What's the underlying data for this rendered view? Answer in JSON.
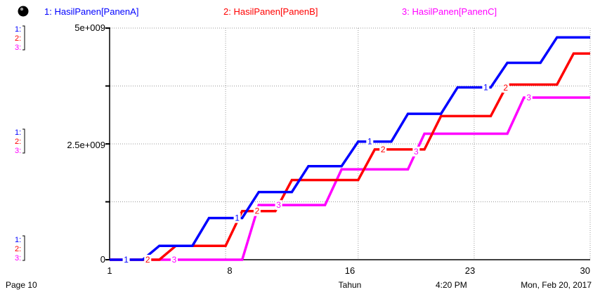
{
  "chart_data": {
    "type": "line",
    "title": "",
    "xlabel": "Tahun",
    "ylabel": "",
    "xlim": [
      1,
      30
    ],
    "ylim": [
      0,
      5000000000
    ],
    "x_ticks": [
      "1",
      "8",
      "16",
      "23",
      "30"
    ],
    "y_ticks": [
      "0",
      "2.5e+009",
      "5e+009"
    ],
    "grid": true,
    "legend_placement": "top",
    "axis_group_labels": [
      {
        "line1": "1:",
        "line2": "2:",
        "line3": "3:"
      },
      {
        "line1": "1:",
        "line2": "2:",
        "line3": "3:"
      },
      {
        "line1": "1:",
        "line2": "2:",
        "line3": "3:"
      }
    ],
    "series": [
      {
        "name": "1: HasilPanen[PanenA]",
        "marker": "1",
        "color": "#0000ff",
        "points": [
          [
            1,
            0
          ],
          [
            3,
            0
          ],
          [
            4,
            300000000
          ],
          [
            6,
            300000000
          ],
          [
            7,
            900000000
          ],
          [
            9,
            900000000
          ],
          [
            10,
            1460000000
          ],
          [
            12,
            1460000000
          ],
          [
            13,
            2020000000
          ],
          [
            14,
            2020000000
          ],
          [
            15,
            2020000000
          ],
          [
            16,
            2550000000
          ],
          [
            18,
            2550000000
          ],
          [
            19,
            3150000000
          ],
          [
            21,
            3150000000
          ],
          [
            22,
            3720000000
          ],
          [
            24,
            3720000000
          ],
          [
            25,
            4250000000
          ],
          [
            27,
            4250000000
          ],
          [
            28,
            4800000000
          ],
          [
            30,
            4800000000
          ]
        ],
        "marker_x": [
          2,
          8.7,
          16.7,
          23.7
        ]
      },
      {
        "name": "2: HasilPanen[PanenB]",
        "marker": "2",
        "color": "#ff0000",
        "points": [
          [
            1,
            0
          ],
          [
            4,
            0
          ],
          [
            5,
            300000000
          ],
          [
            8,
            300000000
          ],
          [
            9,
            1050000000
          ],
          [
            11,
            1050000000
          ],
          [
            12,
            1720000000
          ],
          [
            15,
            1720000000
          ],
          [
            16,
            1720000000
          ],
          [
            17,
            2380000000
          ],
          [
            19,
            2380000000
          ],
          [
            20,
            2380000000
          ],
          [
            21,
            3100000000
          ],
          [
            23,
            3100000000
          ],
          [
            24,
            3100000000
          ],
          [
            25,
            3780000000
          ],
          [
            28,
            3780000000
          ],
          [
            29,
            4450000000
          ],
          [
            30,
            4450000000
          ]
        ],
        "marker_x": [
          3.3,
          9.9,
          17.5,
          24.9
        ]
      },
      {
        "name": "3: HasilPanen[PanenC]",
        "marker": "3",
        "color": "#ff00ff",
        "points": [
          [
            1,
            0
          ],
          [
            4,
            0
          ],
          [
            5,
            0
          ],
          [
            9,
            0
          ],
          [
            10,
            1180000000
          ],
          [
            13,
            1180000000
          ],
          [
            14,
            1180000000
          ],
          [
            15,
            1950000000
          ],
          [
            17,
            1950000000
          ],
          [
            18,
            1950000000
          ],
          [
            19,
            1950000000
          ],
          [
            20,
            2720000000
          ],
          [
            23,
            2720000000
          ],
          [
            24,
            2720000000
          ],
          [
            25,
            2720000000
          ],
          [
            26,
            3500000000
          ],
          [
            30,
            3500000000
          ]
        ],
        "marker_x": [
          4.9,
          11.2,
          19.5,
          26.3
        ]
      }
    ]
  },
  "footer": {
    "page": "Page 10",
    "time": "4:20 PM",
    "date": "Mon, Feb 20, 2017"
  }
}
